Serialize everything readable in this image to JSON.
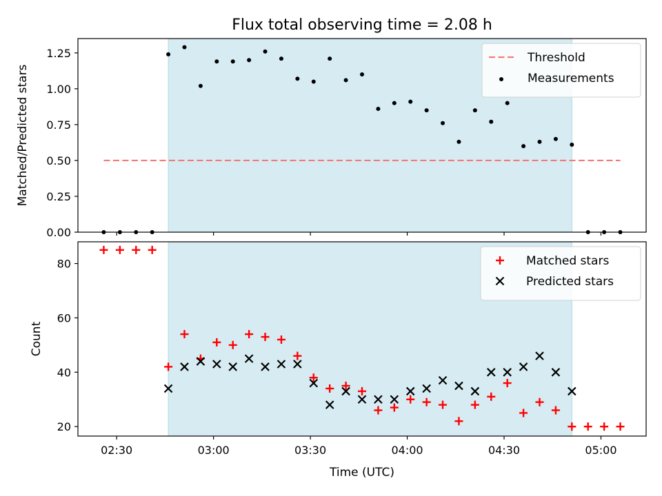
{
  "title": "Flux total observing time = 2.08 h",
  "colors": {
    "threshold": "#f47a7a",
    "measurement": "#000000",
    "matched": "#ff0000",
    "predicted": "#000000",
    "shade": "#add8e6"
  },
  "chart_data": [
    {
      "type": "scatter",
      "panel": "top",
      "ylabel": "Matched/Predicted stars",
      "ylim": [
        0,
        1.35
      ],
      "yticks": [
        "0.00",
        "0.25",
        "0.50",
        "0.75",
        "1.00",
        "1.25"
      ],
      "xlim": [
        "02:18",
        "05:14"
      ],
      "shaded_interval": [
        "02:46",
        "04:51"
      ],
      "legend": "top-right",
      "threshold": {
        "name": "Threshold",
        "value": 0.5,
        "x": [
          "02:26",
          "05:06"
        ]
      },
      "series": [
        {
          "name": "Measurements",
          "x": [
            "02:26",
            "02:31",
            "02:36",
            "02:41",
            "02:46",
            "02:51",
            "02:56",
            "03:01",
            "03:06",
            "03:11",
            "03:16",
            "03:21",
            "03:26",
            "03:31",
            "03:36",
            "03:41",
            "03:46",
            "03:51",
            "03:56",
            "04:01",
            "04:06",
            "04:11",
            "04:16",
            "04:21",
            "04:26",
            "04:31",
            "04:36",
            "04:41",
            "04:46",
            "04:51",
            "04:56",
            "05:01",
            "05:06"
          ],
          "y": [
            0,
            0,
            0,
            0,
            1.24,
            1.29,
            1.02,
            1.19,
            1.19,
            1.2,
            1.26,
            1.21,
            1.07,
            1.05,
            1.21,
            1.06,
            1.1,
            0.86,
            0.9,
            0.91,
            0.85,
            0.76,
            0.63,
            0.85,
            0.77,
            0.9,
            0.6,
            0.63,
            0.65,
            0.61,
            0,
            0,
            0
          ]
        }
      ]
    },
    {
      "type": "scatter",
      "panel": "bottom",
      "xlabel": "Time (UTC)",
      "ylabel": "Count",
      "ylim": [
        16.5,
        88
      ],
      "yticks": [
        "20",
        "40",
        "60",
        "80"
      ],
      "xlim": [
        "02:18",
        "05:14"
      ],
      "xticks": [
        "02:30",
        "03:00",
        "03:30",
        "04:00",
        "04:30",
        "05:00"
      ],
      "shaded_interval": [
        "02:46",
        "04:51"
      ],
      "legend": "top-right",
      "series": [
        {
          "name": "Matched stars",
          "marker": "+",
          "x": [
            "02:26",
            "02:31",
            "02:36",
            "02:41",
            "02:46",
            "02:51",
            "02:56",
            "03:01",
            "03:06",
            "03:11",
            "03:16",
            "03:21",
            "03:26",
            "03:31",
            "03:36",
            "03:41",
            "03:46",
            "03:51",
            "03:56",
            "04:01",
            "04:06",
            "04:11",
            "04:16",
            "04:21",
            "04:26",
            "04:31",
            "04:36",
            "04:41",
            "04:46",
            "04:51",
            "04:56",
            "05:01",
            "05:06"
          ],
          "y": [
            85,
            85,
            85,
            85,
            42,
            54,
            45,
            51,
            50,
            54,
            53,
            52,
            46,
            38,
            34,
            35,
            33,
            26,
            27,
            30,
            29,
            28,
            22,
            28,
            31,
            36,
            25,
            29,
            26,
            20,
            20,
            20,
            20
          ]
        },
        {
          "name": "Predicted stars",
          "marker": "x",
          "x": [
            "02:46",
            "02:51",
            "02:56",
            "03:01",
            "03:06",
            "03:11",
            "03:16",
            "03:21",
            "03:26",
            "03:31",
            "03:36",
            "03:41",
            "03:46",
            "03:51",
            "03:56",
            "04:01",
            "04:06",
            "04:11",
            "04:16",
            "04:21",
            "04:26",
            "04:31",
            "04:36",
            "04:41",
            "04:46",
            "04:51"
          ],
          "y": [
            34,
            42,
            44,
            43,
            42,
            45,
            42,
            43,
            43,
            36,
            28,
            33,
            30,
            30,
            30,
            33,
            34,
            37,
            35,
            33,
            40,
            40,
            42,
            46,
            40,
            33
          ]
        }
      ]
    }
  ]
}
